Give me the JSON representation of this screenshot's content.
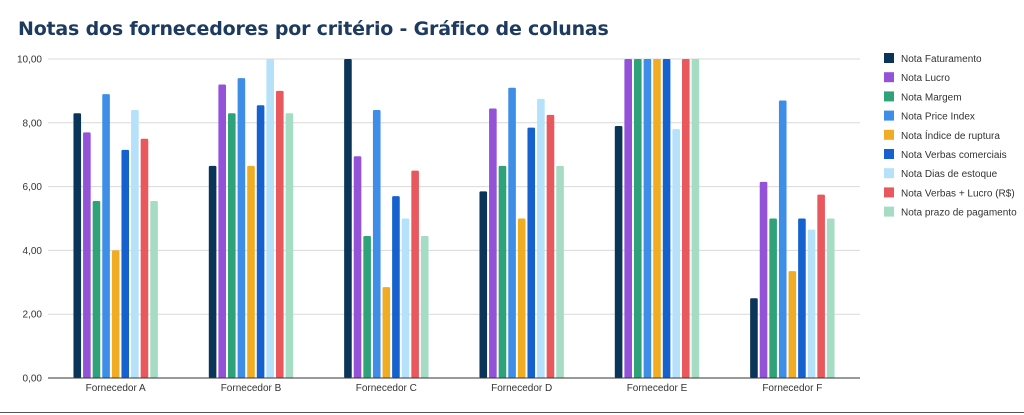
{
  "chart_data": {
    "type": "bar",
    "title": "Notas dos fornecedores por critério - Gráfico de colunas",
    "xlabel": "",
    "ylabel": "",
    "ylim": [
      0,
      10
    ],
    "yticks": [
      "0,00",
      "2,00",
      "4,00",
      "6,00",
      "8,00",
      "10,00"
    ],
    "grid": true,
    "legend_position": "right",
    "categories": [
      "Fornecedor A",
      "Fornecedor B",
      "Fornecedor C",
      "Fornecedor D",
      "Fornecedor E",
      "Fornecedor F"
    ],
    "series": [
      {
        "name": "Nota Faturamento",
        "color": "#0b3558",
        "values": [
          8.3,
          6.65,
          10.0,
          5.85,
          7.9,
          2.5
        ]
      },
      {
        "name": "Nota Lucro",
        "color": "#9452d8",
        "values": [
          7.7,
          9.2,
          6.95,
          8.45,
          10.0,
          6.15
        ]
      },
      {
        "name": "Nota Margem",
        "color": "#2ea37a",
        "values": [
          5.55,
          8.3,
          4.45,
          6.65,
          10.0,
          5.0
        ]
      },
      {
        "name": "Nota Price Index",
        "color": "#3e8ee8",
        "values": [
          8.9,
          9.4,
          8.4,
          9.1,
          10.0,
          8.7
        ]
      },
      {
        "name": "Nota Índice de ruptura",
        "color": "#f0ac22",
        "values": [
          4.0,
          6.65,
          2.85,
          5.0,
          10.0,
          3.35
        ]
      },
      {
        "name": "Nota Verbas comerciais",
        "color": "#1562cf",
        "values": [
          7.15,
          8.55,
          5.7,
          7.85,
          10.0,
          5.0
        ]
      },
      {
        "name": "Nota Dias de estoque",
        "color": "#b6e1fa",
        "values": [
          8.4,
          10.0,
          5.0,
          8.75,
          7.8,
          4.65
        ]
      },
      {
        "name": "Nota Verbas + Lucro (R$)",
        "color": "#e8585d",
        "values": [
          7.5,
          9.0,
          6.5,
          8.25,
          10.0,
          5.75
        ]
      },
      {
        "name": "Nota prazo de pagamento",
        "color": "#a7dcc4",
        "values": [
          5.55,
          8.3,
          4.45,
          6.65,
          10.0,
          5.0
        ]
      }
    ]
  }
}
